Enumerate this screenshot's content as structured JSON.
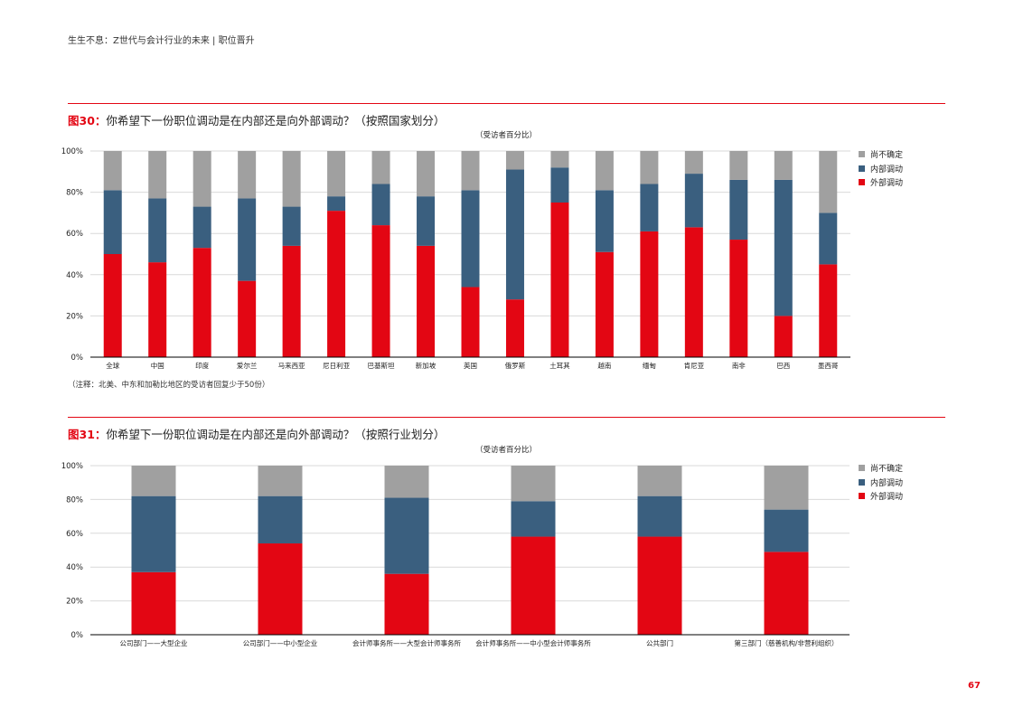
{
  "header": "生生不息：Z世代与会计行业的未来 | 职位晋升",
  "page_number": "67",
  "colors": {
    "unsure": "#a0a0a0",
    "internal": "#3a5f7f",
    "external": "#e30613",
    "accent": "#e30613"
  },
  "figure30": {
    "number": "图30：",
    "title": "你希望下一份职位调动是在内部还是向外部调动？（按照国家划分）",
    "subtitle": "（受访者百分比）",
    "note": "（注释：北美、中东和加勒比地区的受访者回复少于50份）",
    "legend": [
      {
        "key": "unsure",
        "label": "尚不确定"
      },
      {
        "key": "internal",
        "label": "内部调动"
      },
      {
        "key": "external",
        "label": "外部调动"
      }
    ]
  },
  "figure31": {
    "number": "图31：",
    "title": "你希望下一份职位调动是在内部还是向外部调动？（按照行业划分）",
    "subtitle": "（受访者百分比）",
    "legend": [
      {
        "key": "unsure",
        "label": "尚不确定"
      },
      {
        "key": "internal",
        "label": "内部调动"
      },
      {
        "key": "external",
        "label": "外部调动"
      }
    ]
  },
  "chart_data": [
    {
      "type": "bar",
      "stacked": true,
      "title": "你希望下一份职位调动是在内部还是向外部调动？（按照国家划分）",
      "categories": [
        "全球",
        "中国",
        "印度",
        "爱尔兰",
        "马来西亚",
        "尼日利亚",
        "巴基斯坦",
        "新加坡",
        "英国",
        "俄罗斯",
        "土耳其",
        "越南",
        "缅甸",
        "肯尼亚",
        "南非",
        "巴西",
        "墨西哥"
      ],
      "series": [
        {
          "name": "外部调动",
          "key": "external",
          "values": [
            50,
            46,
            53,
            37,
            54,
            71,
            64,
            54,
            34,
            28,
            75,
            51,
            61,
            63,
            57,
            20,
            45
          ]
        },
        {
          "name": "内部调动",
          "key": "internal",
          "values": [
            31,
            31,
            20,
            40,
            19,
            7,
            20,
            24,
            47,
            63,
            17,
            30,
            23,
            26,
            29,
            66,
            25
          ]
        },
        {
          "name": "尚不确定",
          "key": "unsure",
          "values": [
            19,
            23,
            27,
            23,
            27,
            22,
            16,
            22,
            19,
            9,
            8,
            19,
            16,
            11,
            14,
            14,
            30
          ]
        }
      ],
      "yticks": [
        "0%",
        "20%",
        "40%",
        "60%",
        "80%",
        "100%"
      ],
      "ylim": [
        0,
        100
      ],
      "grid": true,
      "legend_position": "right"
    },
    {
      "type": "bar",
      "stacked": true,
      "title": "你希望下一份职位调动是在内部还是向外部调动？（按照行业划分）",
      "categories": [
        "公司部门——大型企业",
        "公司部门——中小型企业",
        "会计师事务所——大型会计师事务所",
        "会计师事务所——中小型会计师事务所",
        "公共部门",
        "第三部门（慈善机构/非营利组织）"
      ],
      "series": [
        {
          "name": "外部调动",
          "key": "external",
          "values": [
            37,
            54,
            36,
            58,
            58,
            49
          ]
        },
        {
          "name": "内部调动",
          "key": "internal",
          "values": [
            45,
            28,
            45,
            21,
            24,
            25
          ]
        },
        {
          "name": "尚不确定",
          "key": "unsure",
          "values": [
            18,
            18,
            19,
            21,
            18,
            26
          ]
        }
      ],
      "yticks": [
        "0%",
        "20%",
        "40%",
        "60%",
        "80%",
        "100%"
      ],
      "ylim": [
        0,
        100
      ],
      "grid": true,
      "legend_position": "right"
    }
  ]
}
